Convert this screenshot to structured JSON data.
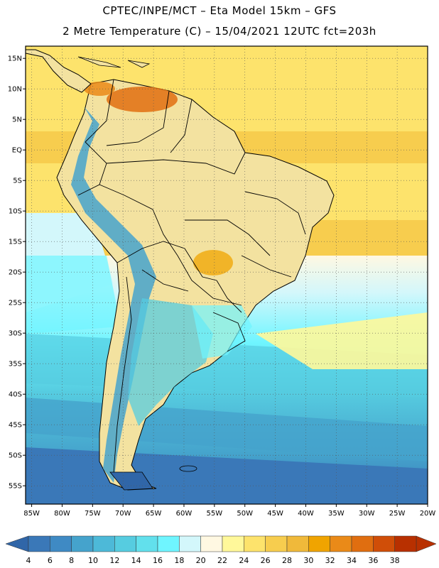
{
  "title_line1": "CPTEC/INPE/MCT –   Eta Model 15km – GFS",
  "title_line2": "2 Metre Temperature (C) – 15/04/2021 12UTC fct=203h",
  "latitude_labels": [
    "15N",
    "10N",
    "5N",
    "EQ",
    "5S",
    "10S",
    "15S",
    "20S",
    "25S",
    "30S",
    "35S",
    "40S",
    "45S",
    "50S",
    "55S"
  ],
  "longitude_labels": [
    "85W",
    "80W",
    "75W",
    "70W",
    "65W",
    "60W",
    "55W",
    "50W",
    "45W",
    "40W",
    "35W",
    "30W",
    "25W",
    "20W"
  ],
  "colorbar": {
    "levels": [
      "4",
      "6",
      "8",
      "10",
      "12",
      "14",
      "16",
      "18",
      "20",
      "22",
      "24",
      "26",
      "28",
      "30",
      "32",
      "34",
      "36",
      "38"
    ],
    "colors": [
      "#3a78b8",
      "#3f8ac4",
      "#45a3cc",
      "#4db9d8",
      "#56cce0",
      "#62e0ec",
      "#6ff5ff",
      "#d3f7fb",
      "#fff8e2",
      "#fff89a",
      "#fde36c",
      "#f7cd4e",
      "#f0b93a",
      "#f0a400",
      "#ea8a18",
      "#e06e10",
      "#d04e08",
      "#b83000"
    ],
    "min_color": "#3066a8",
    "max_color": "#b83000"
  },
  "map": {
    "lat_range": [
      -58,
      17
    ],
    "lon_range": [
      -86,
      -20
    ],
    "field": "2 Metre Temperature",
    "units": "C",
    "ocean_color": "#f5d978",
    "land_color": "#f3e2a0"
  }
}
